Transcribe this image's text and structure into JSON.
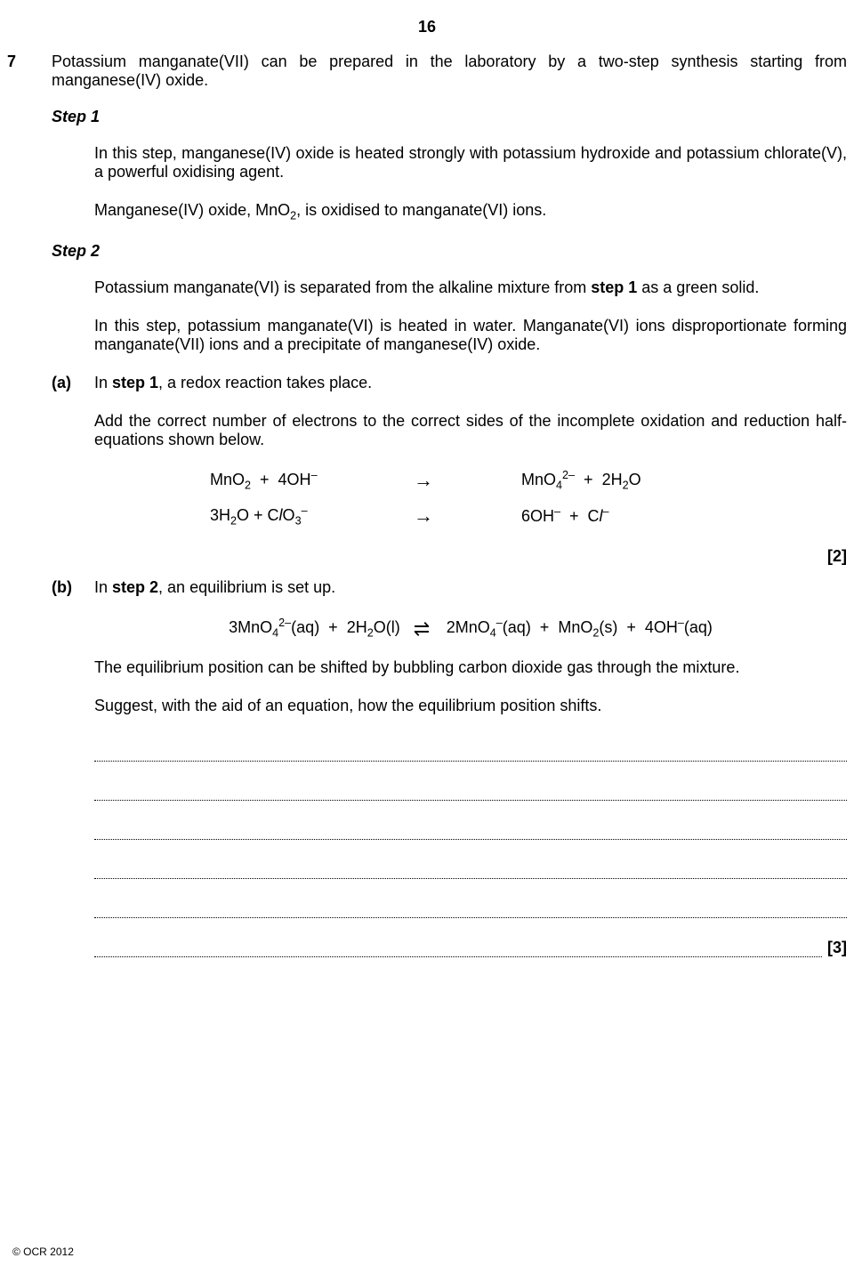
{
  "page_number": "16",
  "question_number": "7",
  "intro": "Potassium manganate(VII) can be prepared in the laboratory by a two-step synthesis starting from manganese(IV) oxide.",
  "step1": {
    "heading": "Step 1",
    "para1": "In this step, manganese(IV) oxide is heated strongly with potassium hydroxide and potassium chlorate(V), a powerful oxidising agent.",
    "para2_pre": "Manganese(IV) oxide, MnO",
    "para2_sub": "2",
    "para2_post": ", is oxidised to manganate(VI) ions."
  },
  "step2": {
    "heading": "Step 2",
    "para1_pre": "Potassium manganate(VI) is separated from the alkaline mixture from ",
    "para1_bold": "step 1",
    "para1_post": " as a green solid.",
    "para2": "In this step, potassium manganate(VI) is heated in water. Manganate(VI) ions disproportionate forming manganate(VII) ions and a precipitate of manganese(IV) oxide."
  },
  "part_a": {
    "label": "(a)",
    "text1_pre": "In ",
    "text1_bold": "step 1",
    "text1_post": ", a redox reaction takes place.",
    "text2": "Add the correct number of electrons to the correct sides of the incomplete oxidation and reduction half-equations shown below.",
    "marks": "[2]"
  },
  "part_b": {
    "label": "(b)",
    "text1_pre": "In ",
    "text1_bold": "step 2",
    "text1_post": ", an equilibrium is set up.",
    "text2": "The equilibrium position can be shifted by bubbling carbon dioxide gas through the mixture.",
    "text3": "Suggest, with the aid of an equation, how the equilibrium position shifts.",
    "marks": "[3]"
  },
  "footer": "© OCR 2012"
}
